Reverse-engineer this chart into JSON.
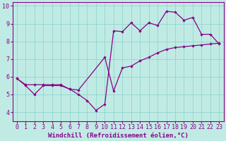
{
  "xlabel": "Windchill (Refroidissement éolien,°C)",
  "bg_color": "#c0ebe4",
  "line_color": "#880088",
  "grid_color": "#98d8d0",
  "xlim_min": -0.5,
  "xlim_max": 23.5,
  "ylim_min": 3.5,
  "ylim_max": 10.2,
  "xticks": [
    0,
    1,
    2,
    3,
    4,
    5,
    6,
    7,
    8,
    9,
    10,
    11,
    12,
    13,
    14,
    15,
    16,
    17,
    18,
    19,
    20,
    21,
    22,
    23
  ],
  "yticks": [
    4,
    5,
    6,
    7,
    8,
    9,
    10
  ],
  "line1_x": [
    0,
    1,
    2,
    3,
    4,
    5,
    6,
    7,
    8,
    9,
    10,
    11,
    12,
    13,
    14,
    15,
    16,
    17,
    18,
    19,
    20,
    21,
    22,
    23
  ],
  "line1_y": [
    5.9,
    5.5,
    5.0,
    5.5,
    5.5,
    5.5,
    5.3,
    5.0,
    4.65,
    4.1,
    4.45,
    8.6,
    8.55,
    9.05,
    8.6,
    9.05,
    8.9,
    9.7,
    9.65,
    9.2,
    9.35,
    8.4,
    8.4,
    7.85
  ],
  "line2_x": [
    0,
    1,
    2,
    3,
    4,
    5,
    6,
    7,
    10,
    11,
    12,
    13,
    14,
    15,
    16,
    17,
    18,
    19,
    20,
    21,
    22,
    23
  ],
  "line2_y": [
    5.9,
    5.55,
    5.55,
    5.55,
    5.55,
    5.55,
    5.3,
    5.25,
    7.1,
    5.2,
    6.5,
    6.6,
    6.9,
    7.1,
    7.35,
    7.55,
    7.65,
    7.7,
    7.75,
    7.8,
    7.85,
    7.9
  ],
  "font_color": "#880088",
  "font_size": 6.0,
  "xlabel_fontsize": 6.5,
  "marker_size": 2.2,
  "linewidth": 0.9
}
